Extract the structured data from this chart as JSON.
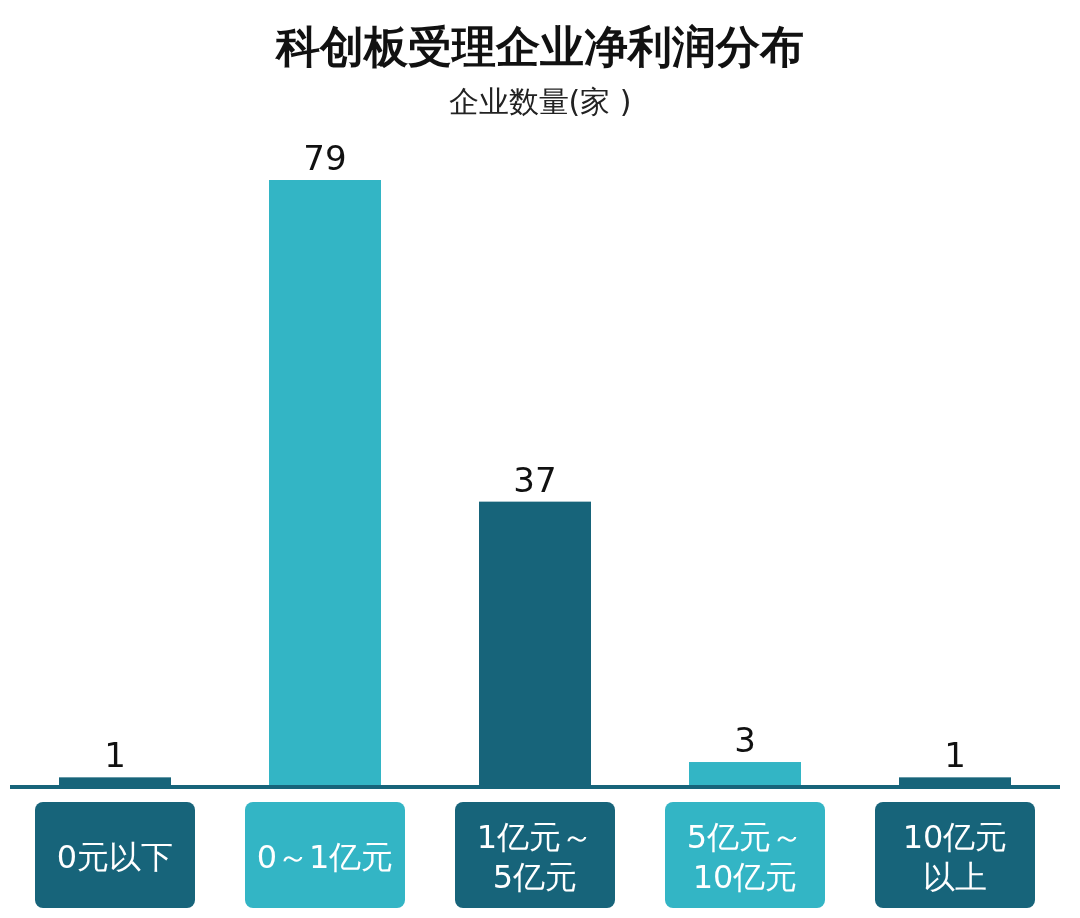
{
  "chart_data": {
    "type": "bar",
    "title": "科创板受理企业净利润分布",
    "subtitle": "企业数量(家 )",
    "categories": [
      "0元以下",
      "0～1亿元",
      "1亿元～5亿元",
      "5亿元～10亿元",
      "10亿元以上"
    ],
    "values": [
      1,
      79,
      37,
      3,
      1
    ],
    "colors": [
      "#17647a",
      "#33b5c5",
      "#17647a",
      "#33b5c5",
      "#17647a"
    ],
    "data_labels": true
  }
}
